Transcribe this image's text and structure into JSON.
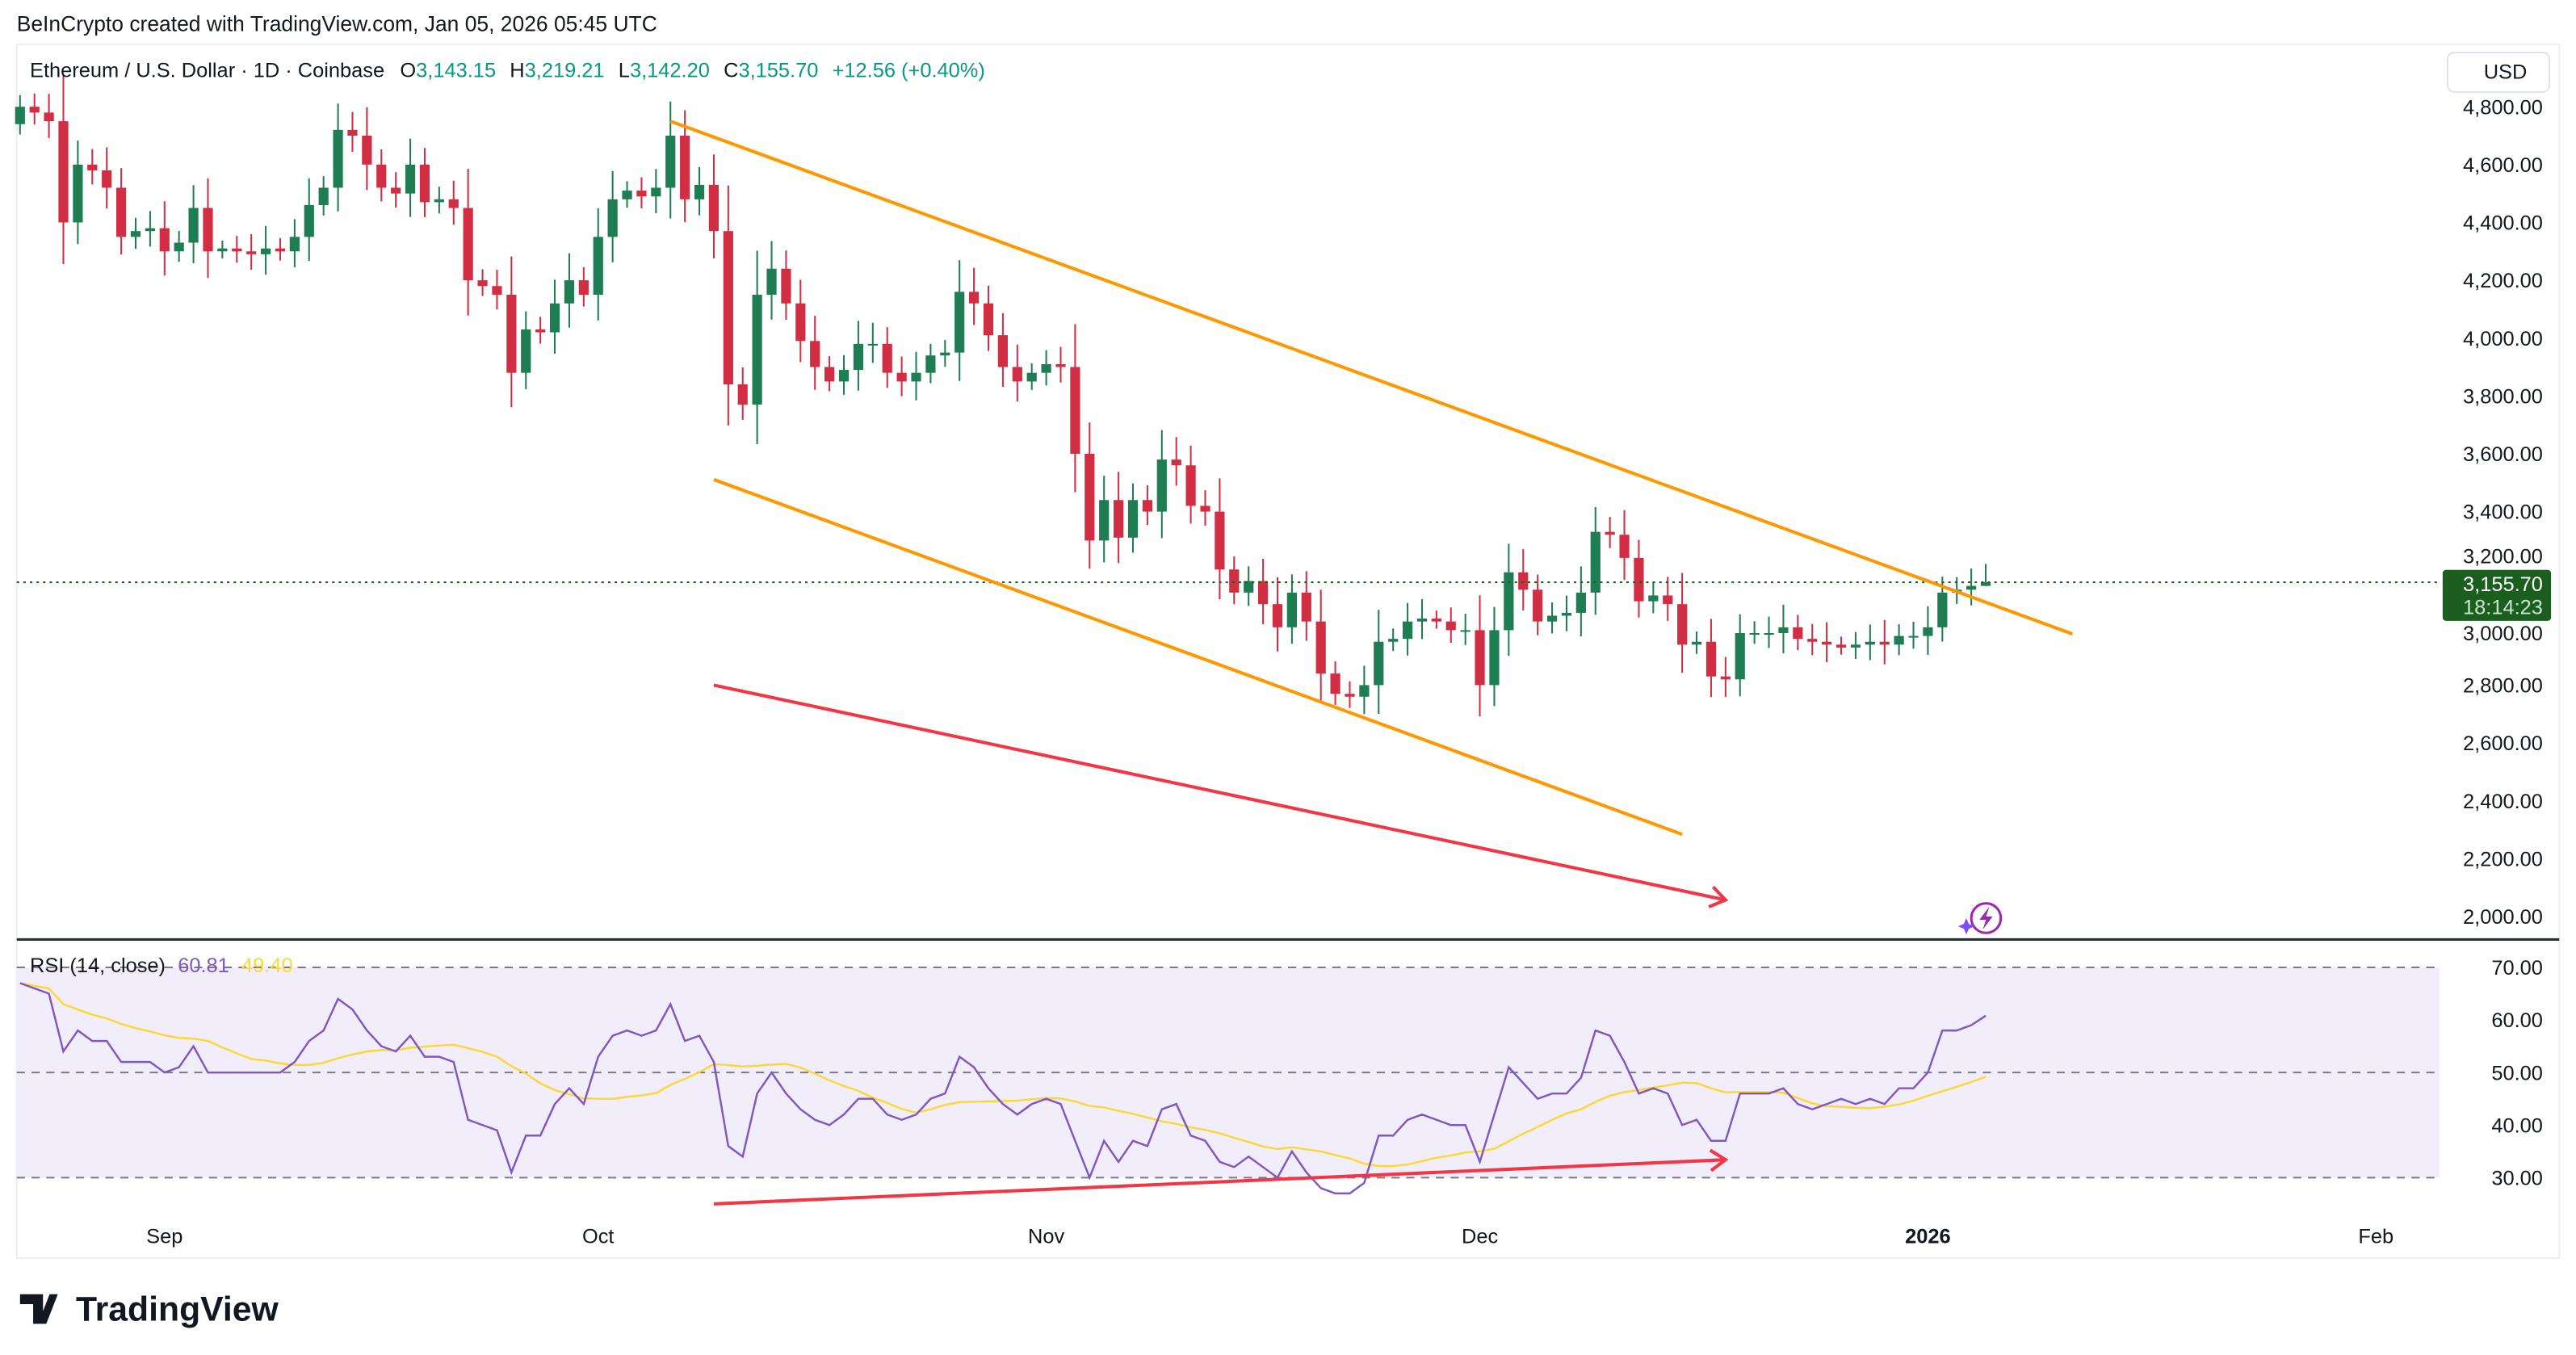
{
  "header": {
    "credit": "BeInCrypto created with TradingView.com, Jan 05, 2026 05:45 UTC"
  },
  "legend": {
    "symbol": "Ethereum / U.S. Dollar · 1D · Coinbase",
    "o_label": "O",
    "o": "3,143.15",
    "h_label": "H",
    "h": "3,219.21",
    "l_label": "L",
    "l": "3,142.20",
    "c_label": "C",
    "c": "3,155.70",
    "change": "+12.56 (+0.40%)"
  },
  "currency": "USD",
  "last_price": {
    "price": "3,155.70",
    "countdown": "18:14:23"
  },
  "rsi_legend": {
    "label": "RSI (14, close)",
    "rsi": "60.81",
    "ma": "49.40"
  },
  "brand": "TradingView",
  "colors": {
    "up": "#1e7d52",
    "down": "#d12d43",
    "channel": "#ff9800",
    "arrow": "#f23645",
    "rsi": "#7e57c2",
    "rsi_ma": "#fdd835",
    "rsi_band": "#f1edfa",
    "price_line": "#1b5e20",
    "legend_value": "#089981"
  },
  "chart_data": [
    {
      "type": "candlestick",
      "start_date": "2025-08-22",
      "interval": "1D",
      "closes": [
        4800,
        4780,
        4750,
        4400,
        4600,
        4580,
        4520,
        4350,
        4370,
        4380,
        4300,
        4330,
        4450,
        4300,
        4310,
        4300,
        4290,
        4310,
        4300,
        4350,
        4460,
        4520,
        4720,
        4700,
        4600,
        4520,
        4500,
        4600,
        4470,
        4480,
        4450,
        4200,
        4180,
        4150,
        3880,
        4030,
        4020,
        4120,
        4200,
        4150,
        4350,
        4480,
        4510,
        4490,
        4520,
        4700,
        4480,
        4530,
        4370,
        3840,
        3770,
        4150,
        4240,
        4120,
        3990,
        3900,
        3850,
        3890,
        3980,
        3980,
        3880,
        3850,
        3880,
        3940,
        3950,
        4160,
        4120,
        4010,
        3900,
        3850,
        3880,
        3910,
        3900,
        3600,
        3300,
        3440,
        3310,
        3440,
        3400,
        3580,
        3560,
        3420,
        3400,
        3200,
        3120,
        3160,
        3080,
        3000,
        3120,
        3020,
        2840,
        2770,
        2760,
        2800,
        2950,
        2960,
        3020,
        3030,
        3020,
        2990,
        2990,
        2800,
        2990,
        3190,
        3130,
        3020,
        3040,
        3050,
        3120,
        3330,
        3320,
        3240,
        3090,
        3110,
        3080,
        2940,
        2950,
        2830,
        2820,
        2980,
        2980,
        2980,
        3000,
        2960,
        2950,
        2940,
        2930,
        2940,
        2950,
        2940,
        2970,
        2970,
        3000,
        3120,
        3130,
        3143.15,
        3155.7
      ],
      "last_candle": {
        "open": 3143.15,
        "high": 3219.21,
        "low": 3142.2,
        "close": 3155.7
      },
      "y_ticks": [
        "2,000.00",
        "2,200.00",
        "2,400.00",
        "2,600.00",
        "2,800.00",
        "3,000.00",
        "3,200.00",
        "3,400.00",
        "3,600.00",
        "3,800.00",
        "4,000.00",
        "4,200.00",
        "4,400.00",
        "4,600.00",
        "4,800.00"
      ],
      "ylim": [
        2000,
        4800
      ],
      "x_ticks": [
        {
          "label": "Sep",
          "date": "2025-09-01"
        },
        {
          "label": "Oct",
          "date": "2025-10-01"
        },
        {
          "label": "Nov",
          "date": "2025-11-01"
        },
        {
          "label": "Dec",
          "date": "2025-12-01"
        },
        {
          "label": "2026",
          "date": "2026-01-01"
        },
        {
          "label": "Feb",
          "date": "2026-02-01"
        }
      ],
      "annotations": [
        {
          "kind": "channel-upper",
          "from": [
            "2025-10-06",
            4750
          ],
          "to": [
            "2026-01-11",
            2977
          ]
        },
        {
          "kind": "channel-lower",
          "from": [
            "2025-10-09",
            3511
          ],
          "to": [
            "2025-12-15",
            2284
          ]
        },
        {
          "kind": "arrow",
          "from": [
            "2025-10-09",
            2800
          ],
          "to": [
            "2025-12-18",
            2057
          ]
        }
      ]
    },
    {
      "type": "line",
      "title": "RSI (14, close)",
      "start_date": "2025-08-22",
      "rsi": [
        67,
        66,
        65,
        54,
        58,
        56,
        56,
        52,
        52,
        52,
        50,
        51,
        55,
        50,
        50,
        50,
        50,
        50,
        50,
        52,
        56,
        58,
        64,
        62,
        58,
        55,
        54,
        57,
        53,
        53,
        52,
        41,
        40,
        39,
        31,
        38,
        38,
        44,
        47,
        44,
        53,
        57,
        58,
        57,
        58,
        63,
        56,
        57,
        52,
        36,
        34,
        46,
        50,
        46,
        43,
        41,
        40,
        42,
        45,
        45,
        42,
        41,
        42,
        45,
        46,
        53,
        51,
        47,
        44,
        42,
        44,
        45,
        44,
        37,
        30,
        37,
        33,
        37,
        36,
        43,
        44,
        38,
        37,
        33,
        32,
        34,
        32,
        30,
        35,
        31,
        28,
        27,
        27,
        29,
        38,
        38,
        41,
        42,
        41,
        40,
        40,
        33,
        42,
        51,
        48,
        45,
        46,
        46,
        49,
        58,
        57,
        52,
        46,
        47,
        46,
        40,
        41,
        37,
        37,
        46,
        46,
        46,
        47,
        44,
        43,
        44,
        45,
        44,
        45,
        44,
        47,
        47,
        50,
        58,
        58,
        59,
        60.81
      ],
      "ma_period": 14,
      "y_ticks": [
        "30.00",
        "40.00",
        "50.00",
        "60.00",
        "70.00"
      ],
      "ylim": [
        30,
        70
      ],
      "annotations": [
        {
          "kind": "arrow",
          "from": [
            "2025-10-09",
            25
          ],
          "to": [
            "2025-12-18",
            33.4
          ]
        }
      ]
    }
  ]
}
